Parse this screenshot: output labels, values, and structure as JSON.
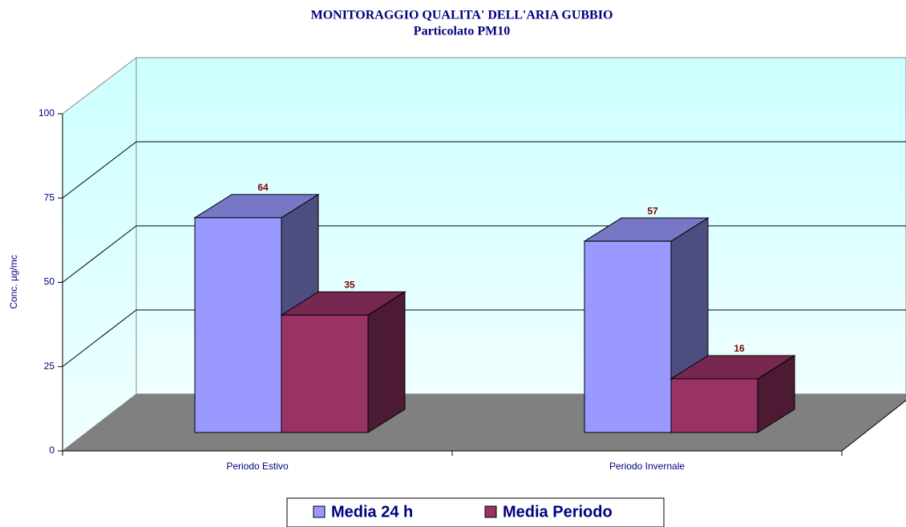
{
  "chart_data": {
    "type": "bar3d",
    "title": "MONITORAGGIO QUALITA' DELL'ARIA GUBBIO",
    "subtitle": "Particolato PM10",
    "y_label": "Conc. µg/mc",
    "categories": [
      "Periodo Estivo",
      "Periodo Invernale"
    ],
    "series": [
      {
        "name": "Media 24 h",
        "color": "#9999ff",
        "values": [
          64,
          57
        ]
      },
      {
        "name": "Media Periodo",
        "color": "#993366",
        "values": [
          35,
          16
        ]
      }
    ],
    "ylim": [
      0,
      100
    ],
    "yticks": [
      0,
      25,
      50,
      75,
      100
    ],
    "grid": true,
    "legend": "bottom"
  }
}
